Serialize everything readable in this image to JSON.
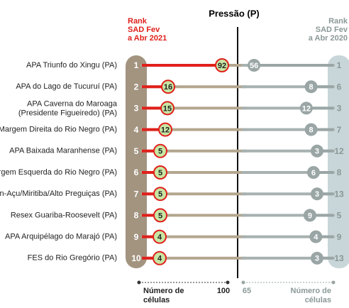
{
  "chart_data": {
    "type": "dumbbell",
    "title": "Pressão (P)",
    "left_header": [
      "Rank",
      "SAD Fev",
      "a Abr 2021"
    ],
    "right_header": [
      "Rank",
      "SAD Fev",
      "a Abr 2020"
    ],
    "categories": [
      "APA Triunfo do Xingu (PA)",
      "APA do Lago de Tucuruí (PA)",
      [
        "APA Caverna do Maroaga",
        "(Presidente Figueiredo) (PA)"
      ],
      "APA Margem Direita do Rio Negro (PA)",
      "APA Baixada Maranhense (PA)",
      "APA Margem Esquerda do Rio Negro (PA)",
      "APA Upaon-Açu/Miritiba/Alto Preguiças (PA)",
      "Resex Guariba-Roosevelt (PA)",
      "APA Arquipélago do Marajó (PA)",
      "FES do Rio Gregório (PA)"
    ],
    "series": [
      {
        "color": "#e0201b",
        "ranks": [
          1,
          2,
          3,
          4,
          5,
          6,
          7,
          8,
          9,
          10
        ],
        "values": [
          92,
          16,
          15,
          12,
          5,
          5,
          5,
          5,
          4,
          4
        ]
      },
      {
        "color": "#9aa6a5",
        "ranks": [
          1,
          6,
          3,
          7,
          12,
          8,
          13,
          5,
          9,
          13
        ],
        "values": [
          56,
          8,
          12,
          8,
          3,
          6,
          3,
          9,
          4,
          3
        ],
        "axis": "x2"
      }
    ],
    "xlim": [
      0,
      100
    ],
    "xticks": [
      100
    ],
    "x2lim": [
      0,
      65
    ],
    "x2ticks": [
      65
    ],
    "xlabel": [
      "Número de",
      "células"
    ],
    "x2label": [
      "Número de",
      "células"
    ]
  }
}
